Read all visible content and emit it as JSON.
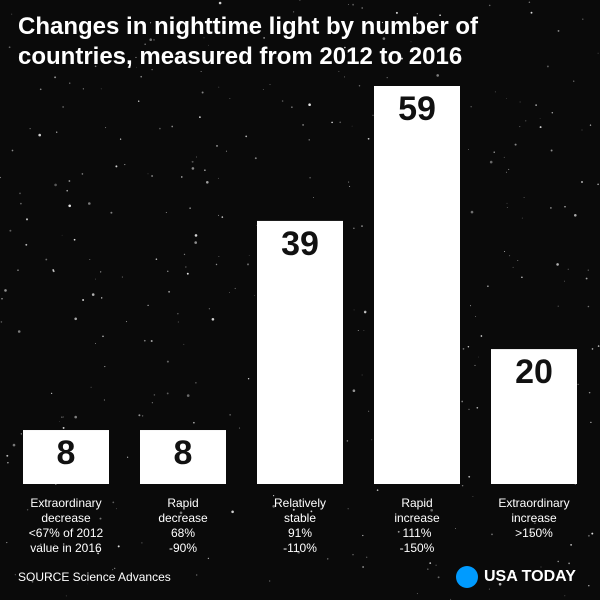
{
  "title": "Changes in nighttime light by number of countries, measured from 2012 to 2016",
  "source": "SOURCE Science Advances",
  "brand": {
    "name": "USA TODAY",
    "color": "#009bff"
  },
  "colors": {
    "background": "#0a0a0a",
    "bar": "#ffffff",
    "text": "#ffffff",
    "value_text": "#111111"
  },
  "chart_data": {
    "type": "bar",
    "categories": [
      [
        "Extraordinary",
        "decrease",
        "<67% of 2012",
        "value in 2016"
      ],
      [
        "Rapid",
        "decrease",
        "68%",
        "-90%"
      ],
      [
        "Relatively",
        "stable",
        "91%",
        "-110%"
      ],
      [
        "Rapid",
        "increase",
        "111%",
        "-150%"
      ],
      [
        "Extraordinary",
        "increase",
        ">150%"
      ]
    ],
    "values": [
      8,
      8,
      39,
      59,
      20
    ],
    "ylim": [
      0,
      59
    ],
    "data_labels": true,
    "grid": false
  }
}
